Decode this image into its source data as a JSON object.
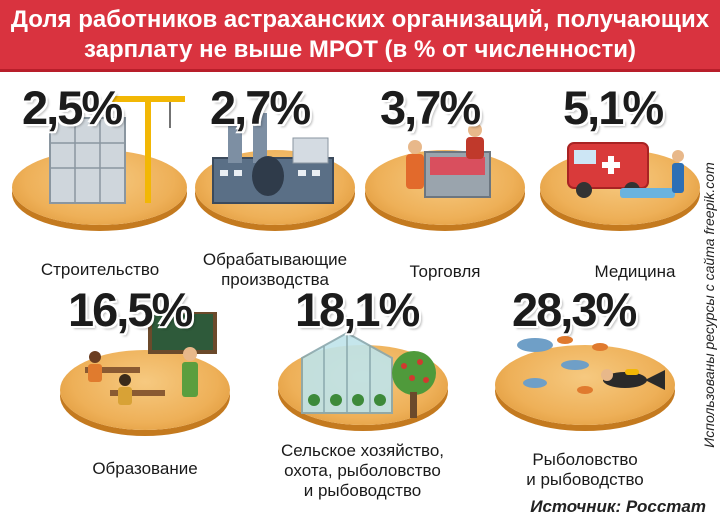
{
  "header": {
    "line1": "Доля работников астраханских организаций, получающих",
    "line2": "зарплату не выше МРОТ (в % от численности)"
  },
  "chart_data": {
    "type": "pictogram",
    "unit": "%",
    "categories": [
      "Строительство",
      "Обрабатывающие производства",
      "Торговля",
      "Медицина",
      "Образование",
      "Сельское хозяйство, охота, рыболовство и рыбоводство",
      "Рыболовство и рыбоводство"
    ],
    "values": [
      2.5,
      2.7,
      3.7,
      5.1,
      16.5,
      18.1,
      28.3
    ],
    "value_labels": [
      "2,5%",
      "2,7%",
      "3,7%",
      "5,1%",
      "16,5%",
      "18,1%",
      "28,3%"
    ]
  },
  "items": [
    {
      "value": "2,5%",
      "label_lines": [
        "Строительство"
      ],
      "icon": "construction-icon"
    },
    {
      "value": "2,7%",
      "label_lines": [
        "Обрабатывающие",
        "производства"
      ],
      "icon": "factory-icon"
    },
    {
      "value": "3,7%",
      "label_lines": [
        "Торговля"
      ],
      "icon": "shop-counter-icon"
    },
    {
      "value": "5,1%",
      "label_lines": [
        "Медицина"
      ],
      "icon": "ambulance-icon"
    },
    {
      "value": "16,5%",
      "label_lines": [
        "Образование"
      ],
      "icon": "classroom-icon"
    },
    {
      "value": "18,1%",
      "label_lines": [
        "Сельское хозяйство,",
        "охота, рыболовство",
        "и рыбоводство"
      ],
      "icon": "greenhouse-icon"
    },
    {
      "value": "28,3%",
      "label_lines": [
        "Рыболовство",
        "и рыбоводство"
      ],
      "icon": "fish-diver-icon"
    }
  ],
  "side_note": "Использованы ресурсы с сайта freepik.com",
  "source": "Источник: Росстат",
  "colors": {
    "header_bg": "#d9333f",
    "disk": "#eeb058",
    "text": "#1a1a1a"
  }
}
